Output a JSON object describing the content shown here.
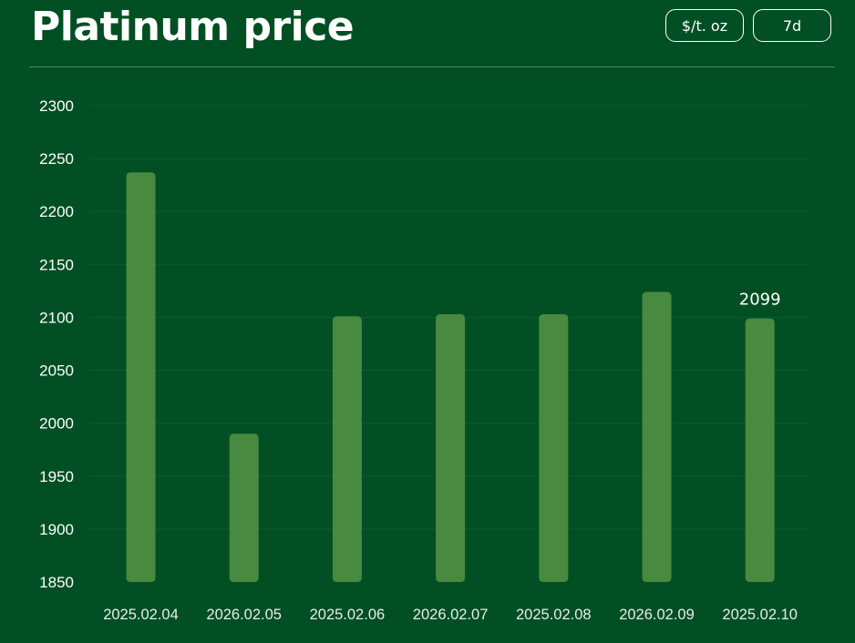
{
  "header": {
    "title": "Platinum price",
    "unit_label": "$/t. oz",
    "range_label": "7d"
  },
  "colors": {
    "background": "#024f24",
    "bar": "#478a40",
    "grid": "#0c5a2c",
    "text": "#ffffff"
  },
  "chart_data": {
    "type": "bar",
    "title": "Platinum price",
    "categories": [
      "2025.02.04",
      "2026.02.05",
      "2025.02.06",
      "2026.02.07",
      "2025.02.08",
      "2026.02.09",
      "2025.02.10"
    ],
    "values": [
      2237,
      1990,
      2101,
      2103,
      2103,
      2124,
      2099
    ],
    "data_labels": [
      {
        "index": 6,
        "text": "2099"
      }
    ],
    "yticks": [
      1850,
      1900,
      1950,
      2000,
      2050,
      2100,
      2150,
      2200,
      2250,
      2300
    ],
    "ylim": [
      1850,
      2300
    ],
    "xlabel": "",
    "ylabel": "",
    "grid": true,
    "legend": "none"
  }
}
